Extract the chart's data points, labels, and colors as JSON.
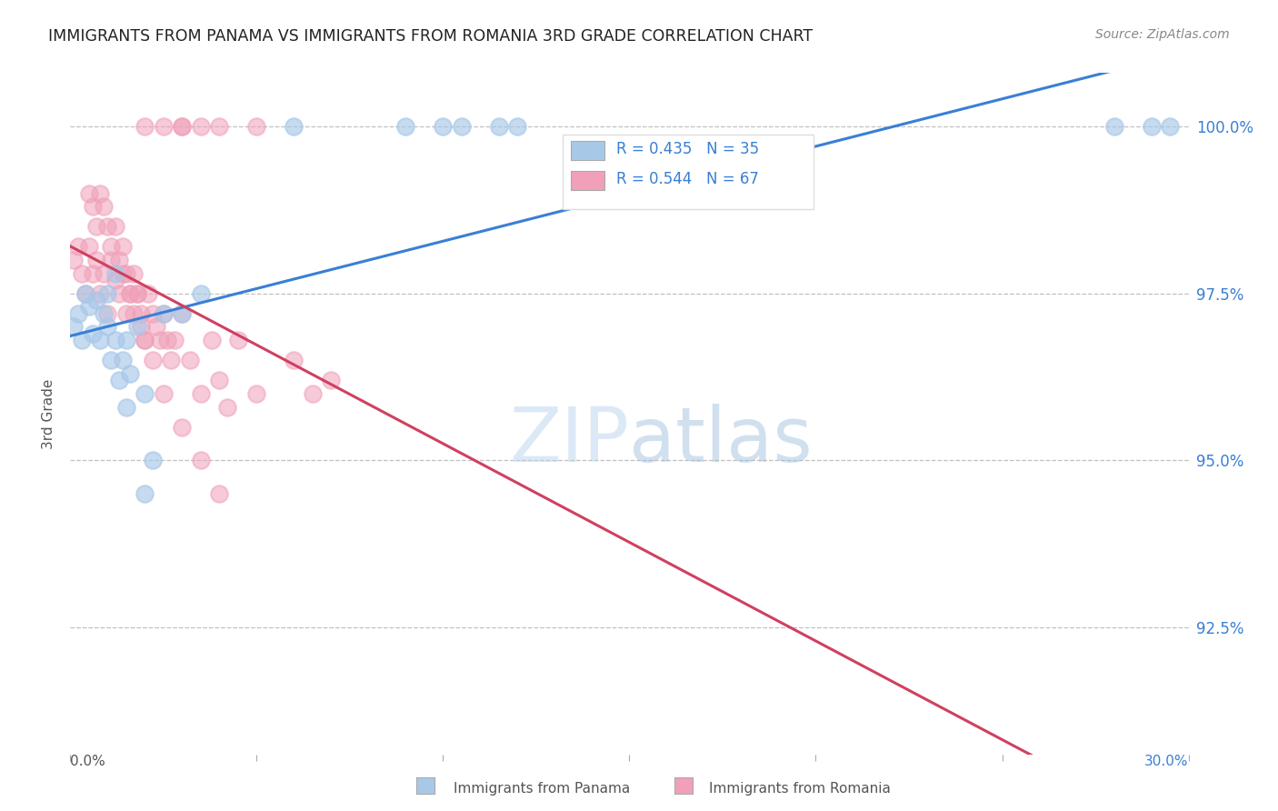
{
  "title": "IMMIGRANTS FROM PANAMA VS IMMIGRANTS FROM ROMANIA 3RD GRADE CORRELATION CHART",
  "source": "Source: ZipAtlas.com",
  "ylabel": "3rd Grade",
  "ytick_vals": [
    1.0,
    0.975,
    0.95,
    0.925
  ],
  "ytick_labels": [
    "100.0%",
    "97.5%",
    "95.0%",
    "92.5%"
  ],
  "xlim": [
    0.0,
    0.3
  ],
  "ylim": [
    0.906,
    1.008
  ],
  "color_panama": "#a8c8e8",
  "color_romania": "#f0a0b8",
  "trendline_panama": "#3a7fd5",
  "trendline_romania": "#d04060",
  "background": "#ffffff",
  "legend_text_1": "R = 0.435   N = 35",
  "legend_text_2": "R = 0.544   N = 67",
  "panama_x": [
    0.001,
    0.002,
    0.003,
    0.004,
    0.005,
    0.006,
    0.007,
    0.008,
    0.009,
    0.01,
    0.011,
    0.012,
    0.013,
    0.014,
    0.015,
    0.016,
    0.018,
    0.02,
    0.022,
    0.025,
    0.03,
    0.035,
    0.06,
    0.09,
    0.1,
    0.105,
    0.115,
    0.12,
    0.28,
    0.29,
    0.295,
    0.01,
    0.012,
    0.015,
    0.02
  ],
  "panama_y": [
    0.97,
    0.972,
    0.968,
    0.975,
    0.973,
    0.969,
    0.974,
    0.968,
    0.972,
    0.97,
    0.965,
    0.968,
    0.962,
    0.965,
    0.958,
    0.963,
    0.97,
    0.96,
    0.95,
    0.972,
    0.972,
    0.975,
    1.0,
    1.0,
    1.0,
    1.0,
    1.0,
    1.0,
    1.0,
    1.0,
    1.0,
    0.975,
    0.978,
    0.968,
    0.945
  ],
  "romania_x": [
    0.001,
    0.002,
    0.003,
    0.004,
    0.005,
    0.006,
    0.007,
    0.008,
    0.009,
    0.01,
    0.011,
    0.012,
    0.013,
    0.014,
    0.015,
    0.016,
    0.017,
    0.018,
    0.019,
    0.02,
    0.021,
    0.022,
    0.023,
    0.024,
    0.025,
    0.026,
    0.027,
    0.028,
    0.03,
    0.032,
    0.035,
    0.038,
    0.04,
    0.042,
    0.045,
    0.05,
    0.06,
    0.065,
    0.07,
    0.005,
    0.006,
    0.007,
    0.008,
    0.009,
    0.01,
    0.011,
    0.012,
    0.013,
    0.014,
    0.015,
    0.016,
    0.017,
    0.018,
    0.019,
    0.02,
    0.022,
    0.025,
    0.03,
    0.035,
    0.04,
    0.03,
    0.04,
    0.05,
    0.02,
    0.025,
    0.03,
    0.035
  ],
  "romania_y": [
    0.98,
    0.982,
    0.978,
    0.975,
    0.982,
    0.978,
    0.98,
    0.975,
    0.978,
    0.972,
    0.98,
    0.977,
    0.975,
    0.978,
    0.972,
    0.975,
    0.978,
    0.975,
    0.972,
    0.968,
    0.975,
    0.972,
    0.97,
    0.968,
    0.972,
    0.968,
    0.965,
    0.968,
    0.972,
    0.965,
    0.96,
    0.968,
    0.962,
    0.958,
    0.968,
    0.96,
    0.965,
    0.96,
    0.962,
    0.99,
    0.988,
    0.985,
    0.99,
    0.988,
    0.985,
    0.982,
    0.985,
    0.98,
    0.982,
    0.978,
    0.975,
    0.972,
    0.975,
    0.97,
    0.968,
    0.965,
    0.96,
    0.955,
    0.95,
    0.945,
    1.0,
    1.0,
    1.0,
    1.0,
    1.0,
    1.0,
    1.0
  ]
}
